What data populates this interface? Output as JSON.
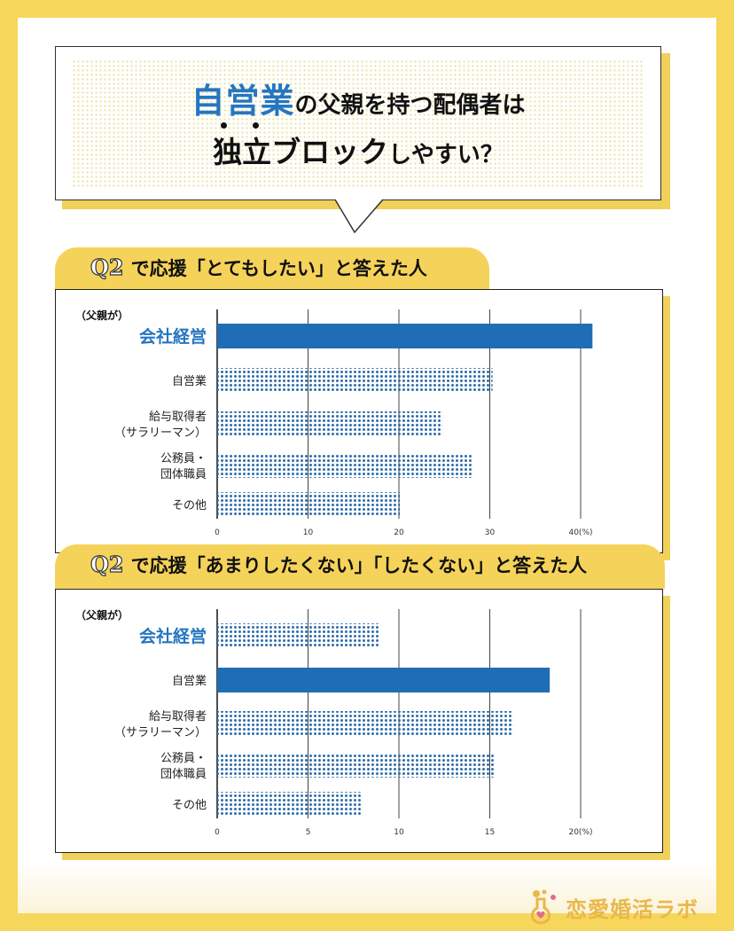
{
  "title": {
    "line1_highlight": "自営業",
    "line1_rest": "の父親を持つ配偶者は",
    "line2_highlight": "独立ブロック",
    "line2_rest": "しやすい？"
  },
  "colors": {
    "accent_blue": "#1f6eb5",
    "dotted_blue": "#2a6aa8",
    "brand_yellow": "#f5d35a",
    "title_blue": "#2576c0"
  },
  "logo": {
    "text": "恋愛婚活ラボ",
    "icon": "flask-heart-icon"
  },
  "chart_data": [
    {
      "type": "bar",
      "orientation": "horizontal",
      "banner": {
        "prefix": "Q2",
        "text": "で応援「とてもしたい」と答えた人"
      },
      "group_label": "（父親が）",
      "categories": [
        {
          "name": "会社経営",
          "lines": [
            "会社経営"
          ],
          "value": 41.3,
          "highlight": true
        },
        {
          "name": "自営業",
          "lines": [
            "自営業"
          ],
          "value": 30.3,
          "highlight": false
        },
        {
          "name": "給与取得者（サラリーマン）",
          "lines": [
            "給与取得者",
            "（サラリーマン）"
          ],
          "value": 24.8,
          "highlight": false
        },
        {
          "name": "公務員・団体職員",
          "lines": [
            "公務員・",
            "団体職員"
          ],
          "value": 28.2,
          "highlight": false
        },
        {
          "name": "その他",
          "lines": [
            "その他"
          ],
          "value": 20.1,
          "highlight": false
        }
      ],
      "xlim": [
        0,
        40
      ],
      "xticks": [
        "0",
        "10",
        "20",
        "30",
        "40(%)"
      ],
      "xtick_values": [
        0,
        10,
        20,
        30,
        40
      ],
      "unit": "%",
      "grid": true
    },
    {
      "type": "bar",
      "orientation": "horizontal",
      "banner": {
        "prefix": "Q2",
        "text": "で応援「あまりしたくない」「したくない」と答えた人"
      },
      "group_label": "（父親が）",
      "categories": [
        {
          "name": "会社経営",
          "lines": [
            "会社経営"
          ],
          "value": 8.9,
          "highlight": false,
          "blue_label": true
        },
        {
          "name": "自営業",
          "lines": [
            "自営業"
          ],
          "value": 18.3,
          "highlight": true,
          "blue_label": false
        },
        {
          "name": "給与取得者（サラリーマン）",
          "lines": [
            "給与取得者",
            "（サラリーマン）"
          ],
          "value": 16.3,
          "highlight": false,
          "blue_label": false
        },
        {
          "name": "公務員・団体職員",
          "lines": [
            "公務員・",
            "団体職員"
          ],
          "value": 15.3,
          "highlight": false,
          "blue_label": false
        },
        {
          "name": "その他",
          "lines": [
            "その他"
          ],
          "value": 8.0,
          "highlight": false,
          "blue_label": false
        }
      ],
      "xlim": [
        0,
        20
      ],
      "xticks": [
        "0",
        "5",
        "10",
        "15",
        "20(%)"
      ],
      "xtick_values": [
        0,
        5,
        10,
        15,
        20
      ],
      "unit": "%",
      "grid": true
    }
  ]
}
